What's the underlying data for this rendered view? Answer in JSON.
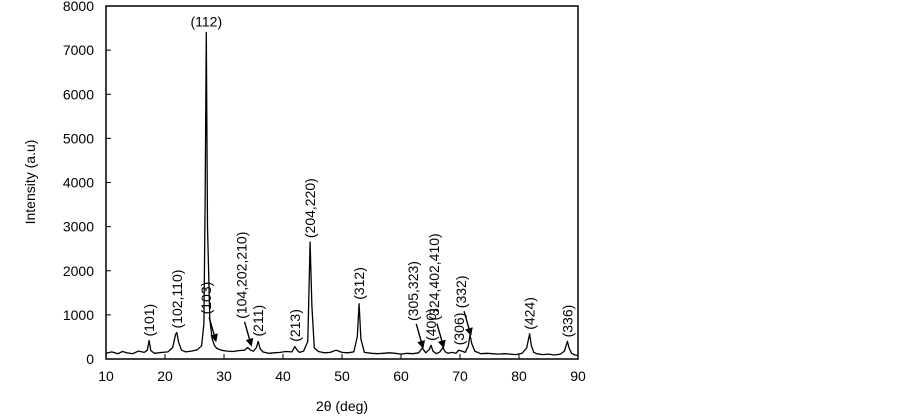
{
  "chart_data": {
    "type": "line",
    "title": "",
    "xlabel": "2θ (deg)",
    "ylabel": "Intensity (a.u)",
    "xlim": [
      10,
      90
    ],
    "ylim": [
      0,
      8000
    ],
    "x_ticks": [
      10,
      20,
      30,
      40,
      50,
      60,
      70,
      80,
      90
    ],
    "y_ticks": [
      0,
      1000,
      2000,
      3000,
      4000,
      5000,
      6000,
      7000,
      8000
    ],
    "grid": false,
    "legend": "none",
    "line_color": "#000000",
    "series": [
      {
        "x": [
          10,
          11,
          12,
          12.8,
          13.5,
          14.5,
          15.5,
          16.5,
          17.0,
          17.3,
          17.6,
          18.2,
          19.5,
          20.5,
          21.3,
          21.8,
          22.0,
          22.3,
          22.8,
          23.5,
          24.5,
          25.5,
          26.2,
          26.6,
          26.8,
          27.0,
          27.2,
          27.6,
          28.0,
          28.4,
          28.8,
          29.5,
          30.5,
          31.5,
          32.5,
          33.5,
          34.0,
          34.5,
          35.0,
          35.5,
          35.8,
          36.1,
          36.6,
          37.5,
          38.5,
          39.5,
          40.5,
          41.5,
          42.0,
          42.4,
          42.8,
          43.5,
          44.2,
          44.6,
          44.9,
          45.3,
          46.0,
          47.0,
          48.0,
          49.0,
          50.0,
          51.0,
          52.0,
          52.6,
          52.9,
          53.2,
          53.8,
          55.0,
          56.0,
          57.0,
          58.0,
          59.0,
          60.0,
          61.0,
          62.0,
          63.0,
          63.6,
          64.2,
          64.8,
          65.1,
          65.4,
          66.0,
          66.6,
          67.1,
          67.5,
          68.0,
          68.6,
          69.3,
          69.8,
          70.3,
          70.9,
          71.4,
          71.7,
          72.0,
          72.5,
          73.5,
          74.5,
          75.5,
          76.5,
          77.5,
          78.5,
          79.5,
          80.5,
          81.3,
          81.8,
          82.1,
          82.5,
          83.0,
          84.0,
          85.0,
          86.0,
          87.0,
          87.7,
          88.2,
          88.5,
          88.9,
          89.5,
          90
        ],
        "y": [
          130,
          160,
          120,
          170,
          140,
          120,
          180,
          150,
          200,
          420,
          190,
          130,
          150,
          160,
          260,
          560,
          600,
          380,
          200,
          160,
          180,
          210,
          300,
          800,
          3500,
          7400,
          3000,
          900,
          450,
          300,
          240,
          200,
          180,
          170,
          190,
          200,
          260,
          200,
          180,
          260,
          400,
          240,
          160,
          130,
          140,
          150,
          170,
          160,
          280,
          200,
          150,
          180,
          400,
          2650,
          1200,
          250,
          170,
          140,
          150,
          200,
          150,
          140,
          160,
          500,
          1250,
          450,
          150,
          130,
          120,
          130,
          140,
          130,
          110,
          130,
          120,
          140,
          250,
          140,
          220,
          310,
          180,
          120,
          160,
          260,
          160,
          130,
          150,
          130,
          200,
          180,
          150,
          300,
          540,
          350,
          180,
          120,
          130,
          120,
          110,
          120,
          110,
          100,
          130,
          250,
          570,
          300,
          150,
          120,
          100,
          110,
          90,
          110,
          180,
          400,
          250,
          130,
          90,
          80
        ]
      }
    ],
    "annotations": [
      {
        "text": "(101)",
        "x": 17.3,
        "y": 420,
        "arrow": false,
        "rotated": true
      },
      {
        "text": "(102,110)",
        "x": 22.0,
        "y": 600,
        "arrow": false,
        "rotated": true
      },
      {
        "text": "(112)",
        "x": 27.0,
        "y": 7400,
        "arrow": false,
        "rotated": false
      },
      {
        "text": "(103)",
        "x": 28.5,
        "y": 400,
        "arrow": true,
        "rotated": true
      },
      {
        "text": "(104,202,210)",
        "x": 34.5,
        "y": 300,
        "arrow": true,
        "rotated": true
      },
      {
        "text": "(211)",
        "x": 35.8,
        "y": 420,
        "arrow": false,
        "rotated": true
      },
      {
        "text": "(213)",
        "x": 42.0,
        "y": 300,
        "arrow": false,
        "rotated": true
      },
      {
        "text": "(204,220)",
        "x": 44.6,
        "y": 2650,
        "arrow": false,
        "rotated": true
      },
      {
        "text": "(312)",
        "x": 52.9,
        "y": 1250,
        "arrow": false,
        "rotated": true
      },
      {
        "text": "(305,323)",
        "x": 63.6,
        "y": 250,
        "arrow": true,
        "rotated": true
      },
      {
        "text": "(400)",
        "x": 65.1,
        "y": 320,
        "arrow": false,
        "rotated": true
      },
      {
        "text": "(324,402,410)",
        "x": 67.1,
        "y": 260,
        "arrow": true,
        "rotated": true
      },
      {
        "text": "(306)",
        "x": 69.8,
        "y": 220,
        "arrow": false,
        "rotated": true
      },
      {
        "text": "(332)",
        "x": 71.7,
        "y": 540,
        "arrow": true,
        "rotated": true
      },
      {
        "text": "(424)",
        "x": 81.8,
        "y": 570,
        "arrow": false,
        "rotated": true
      },
      {
        "text": "(336)",
        "x": 88.2,
        "y": 400,
        "arrow": false,
        "rotated": true
      }
    ]
  }
}
